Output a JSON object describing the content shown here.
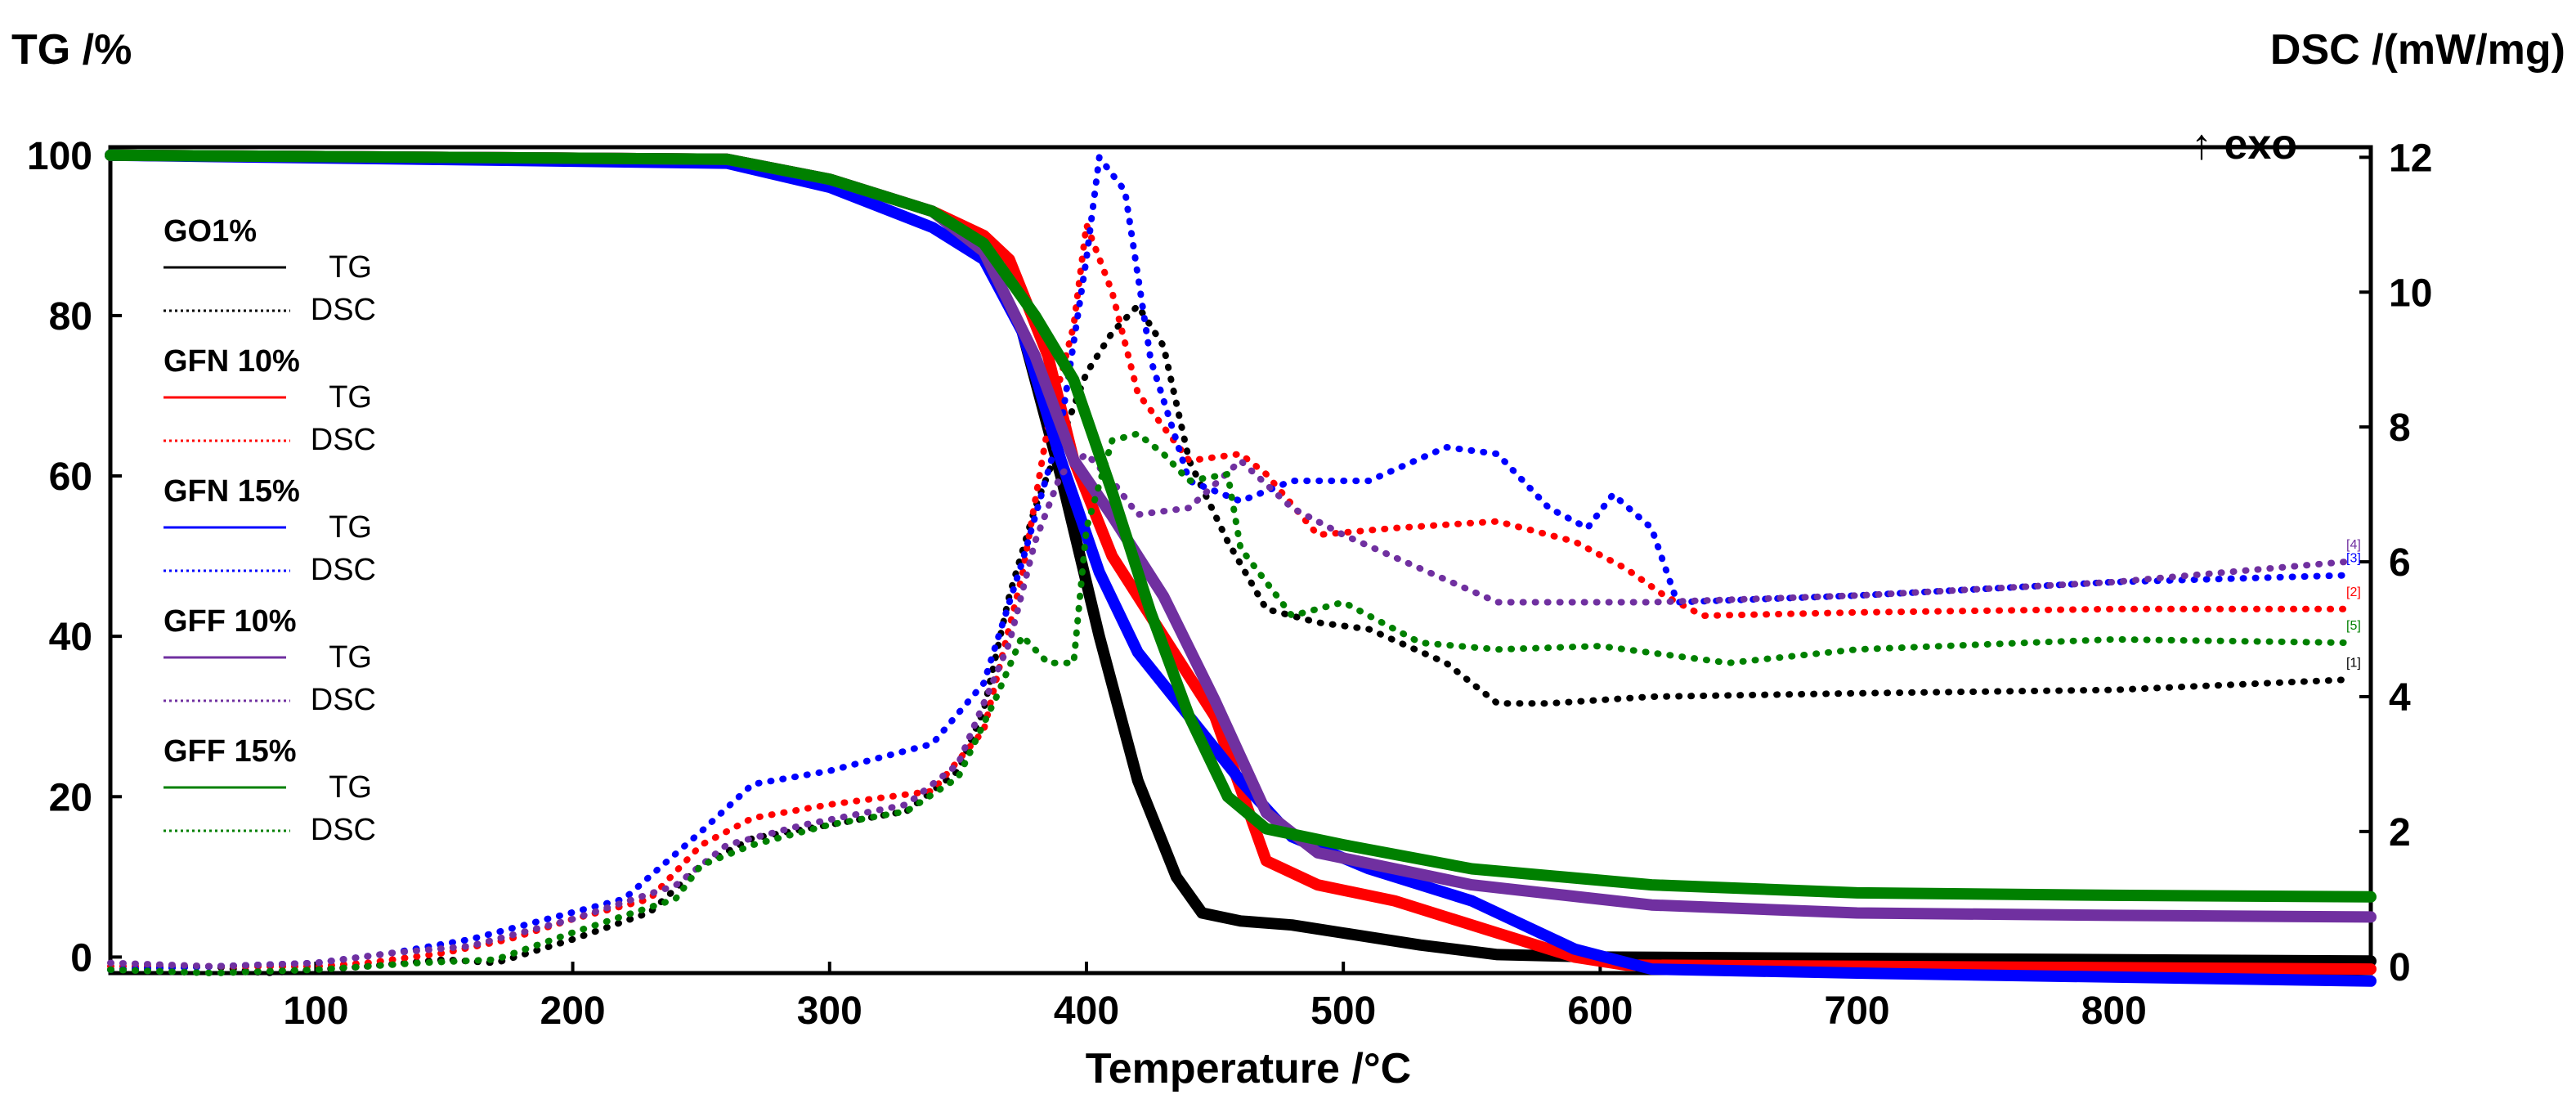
{
  "chart_data": {
    "type": "line",
    "title": "",
    "xlabel": "Temperature /°C",
    "y_left_label": "TG /%",
    "y_right_label": "DSC /(mW/mg)",
    "exo_label": "↑ exo",
    "xlim": [
      20,
      900
    ],
    "ylim_left": [
      -2,
      101
    ],
    "ylim_right": [
      -0.1,
      12.15
    ],
    "x_ticks": [
      100,
      200,
      300,
      400,
      500,
      600,
      700,
      800
    ],
    "y_left_ticks": [
      0,
      20,
      40,
      60,
      80,
      100
    ],
    "y_right_ticks": [
      0,
      2,
      4,
      6,
      8,
      10,
      12
    ],
    "legend_tg_label": "TG",
    "legend_dsc_label": "DSC",
    "series": [
      {
        "name": "GO1%",
        "color": "#000000",
        "end_marker": "[1]",
        "tg": [
          [
            20,
            100
          ],
          [
            260,
            99.5
          ],
          [
            300,
            97
          ],
          [
            340,
            93
          ],
          [
            360,
            88
          ],
          [
            375,
            78
          ],
          [
            390,
            60
          ],
          [
            405,
            40
          ],
          [
            420,
            22
          ],
          [
            435,
            10
          ],
          [
            445,
            5.5
          ],
          [
            460,
            4.5
          ],
          [
            480,
            4
          ],
          [
            500,
            3
          ],
          [
            530,
            1.5
          ],
          [
            560,
            0.3
          ],
          [
            600,
            0
          ],
          [
            900,
            -0.5
          ]
        ],
        "dsc": [
          [
            20,
            -0.05
          ],
          [
            60,
            0
          ],
          [
            80,
            -0.1
          ],
          [
            100,
            -0.05
          ],
          [
            120,
            0
          ],
          [
            150,
            0.1
          ],
          [
            170,
            0.05
          ],
          [
            200,
            0.4
          ],
          [
            230,
            0.8
          ],
          [
            250,
            1.5
          ],
          [
            270,
            1.9
          ],
          [
            300,
            2.1
          ],
          [
            330,
            2.3
          ],
          [
            350,
            2.9
          ],
          [
            360,
            3.8
          ],
          [
            370,
            5.5
          ],
          [
            380,
            6.8
          ],
          [
            390,
            7.8
          ],
          [
            400,
            8.8
          ],
          [
            410,
            9.4
          ],
          [
            420,
            9.8
          ],
          [
            430,
            9.2
          ],
          [
            440,
            7.5
          ],
          [
            455,
            6.3
          ],
          [
            470,
            5.3
          ],
          [
            490,
            5.1
          ],
          [
            510,
            5.0
          ],
          [
            540,
            4.5
          ],
          [
            560,
            3.9
          ],
          [
            580,
            3.9
          ],
          [
            620,
            4.0
          ],
          [
            700,
            4.05
          ],
          [
            800,
            4.1
          ],
          [
            890,
            4.25
          ]
        ]
      },
      {
        "name": "GFN 10%",
        "color": "#ff0000",
        "end_marker": "[2]",
        "tg": [
          [
            20,
            100
          ],
          [
            260,
            99.5
          ],
          [
            300,
            97
          ],
          [
            340,
            93
          ],
          [
            360,
            90
          ],
          [
            370,
            87
          ],
          [
            385,
            75
          ],
          [
            395,
            62
          ],
          [
            410,
            50
          ],
          [
            430,
            40
          ],
          [
            450,
            30
          ],
          [
            470,
            12
          ],
          [
            490,
            9
          ],
          [
            520,
            7
          ],
          [
            560,
            3
          ],
          [
            590,
            0
          ],
          [
            610,
            -1
          ],
          [
            900,
            -1.5
          ]
        ],
        "dsc": [
          [
            20,
            0
          ],
          [
            60,
            0
          ],
          [
            100,
            0
          ],
          [
            120,
            0.05
          ],
          [
            150,
            0.2
          ],
          [
            175,
            0.4
          ],
          [
            200,
            0.7
          ],
          [
            230,
            1.0
          ],
          [
            250,
            1.8
          ],
          [
            270,
            2.2
          ],
          [
            300,
            2.4
          ],
          [
            340,
            2.6
          ],
          [
            360,
            3.5
          ],
          [
            375,
            5.8
          ],
          [
            385,
            8.0
          ],
          [
            395,
            9.5
          ],
          [
            400,
            11.0
          ],
          [
            410,
            10.0
          ],
          [
            420,
            8.5
          ],
          [
            440,
            7.5
          ],
          [
            460,
            7.6
          ],
          [
            470,
            7.3
          ],
          [
            490,
            6.4
          ],
          [
            520,
            6.5
          ],
          [
            560,
            6.6
          ],
          [
            590,
            6.3
          ],
          [
            610,
            5.9
          ],
          [
            625,
            5.5
          ],
          [
            640,
            5.2
          ],
          [
            700,
            5.25
          ],
          [
            800,
            5.3
          ],
          [
            890,
            5.3
          ]
        ]
      },
      {
        "name": "GFN 15%",
        "color": "#0000ff",
        "end_marker": "[3]",
        "tg": [
          [
            20,
            100
          ],
          [
            260,
            99
          ],
          [
            300,
            96
          ],
          [
            340,
            91
          ],
          [
            360,
            87
          ],
          [
            375,
            78
          ],
          [
            390,
            62
          ],
          [
            405,
            48
          ],
          [
            420,
            38
          ],
          [
            440,
            30
          ],
          [
            460,
            22
          ],
          [
            480,
            15
          ],
          [
            510,
            11
          ],
          [
            550,
            7
          ],
          [
            590,
            1
          ],
          [
            620,
            -1.5
          ],
          [
            700,
            -2
          ],
          [
            900,
            -3
          ]
        ],
        "dsc": [
          [
            20,
            -0.05
          ],
          [
            60,
            0
          ],
          [
            100,
            0.05
          ],
          [
            130,
            0.2
          ],
          [
            160,
            0.4
          ],
          [
            190,
            0.7
          ],
          [
            220,
            1.0
          ],
          [
            250,
            2.0
          ],
          [
            270,
            2.7
          ],
          [
            300,
            2.9
          ],
          [
            340,
            3.3
          ],
          [
            360,
            4.2
          ],
          [
            375,
            6.0
          ],
          [
            390,
            8.0
          ],
          [
            400,
            10.5
          ],
          [
            405,
            12.0
          ],
          [
            415,
            11.5
          ],
          [
            425,
            9.0
          ],
          [
            440,
            7.2
          ],
          [
            460,
            6.9
          ],
          [
            480,
            7.2
          ],
          [
            510,
            7.2
          ],
          [
            540,
            7.7
          ],
          [
            560,
            7.6
          ],
          [
            580,
            6.8
          ],
          [
            595,
            6.5
          ],
          [
            605,
            7.0
          ],
          [
            620,
            6.5
          ],
          [
            630,
            5.4
          ],
          [
            700,
            5.5
          ],
          [
            800,
            5.7
          ],
          [
            890,
            5.8
          ]
        ]
      },
      {
        "name": "GFF 10%",
        "color": "#7030a0",
        "end_marker": "[4]",
        "tg": [
          [
            20,
            100
          ],
          [
            260,
            99.5
          ],
          [
            300,
            97
          ],
          [
            340,
            93
          ],
          [
            360,
            88
          ],
          [
            380,
            75
          ],
          [
            395,
            62
          ],
          [
            410,
            55
          ],
          [
            430,
            45
          ],
          [
            450,
            32
          ],
          [
            470,
            18
          ],
          [
            490,
            13
          ],
          [
            550,
            9
          ],
          [
            620,
            6.5
          ],
          [
            700,
            5.5
          ],
          [
            800,
            5.2
          ],
          [
            900,
            5
          ]
        ],
        "dsc": [
          [
            20,
            0.05
          ],
          [
            60,
            0
          ],
          [
            100,
            0.05
          ],
          [
            130,
            0.2
          ],
          [
            160,
            0.3
          ],
          [
            200,
            0.7
          ],
          [
            240,
            1.2
          ],
          [
            260,
            1.8
          ],
          [
            290,
            2.1
          ],
          [
            330,
            2.4
          ],
          [
            350,
            3.0
          ],
          [
            370,
            4.8
          ],
          [
            380,
            6.3
          ],
          [
            390,
            7.3
          ],
          [
            400,
            7.6
          ],
          [
            410,
            7.2
          ],
          [
            420,
            6.7
          ],
          [
            440,
            6.8
          ],
          [
            460,
            7.5
          ],
          [
            480,
            6.8
          ],
          [
            500,
            6.4
          ],
          [
            530,
            5.9
          ],
          [
            560,
            5.4
          ],
          [
            620,
            5.4
          ],
          [
            700,
            5.5
          ],
          [
            800,
            5.7
          ],
          [
            890,
            6.0
          ]
        ]
      },
      {
        "name": "GFF 15%",
        "color": "#008000",
        "end_marker": "[5]",
        "tg": [
          [
            20,
            100
          ],
          [
            260,
            99.5
          ],
          [
            300,
            97
          ],
          [
            340,
            93
          ],
          [
            360,
            89
          ],
          [
            380,
            80
          ],
          [
            395,
            72
          ],
          [
            410,
            58
          ],
          [
            425,
            43
          ],
          [
            440,
            30
          ],
          [
            455,
            20
          ],
          [
            470,
            16
          ],
          [
            500,
            14
          ],
          [
            550,
            11
          ],
          [
            620,
            9
          ],
          [
            700,
            8
          ],
          [
            800,
            7.7
          ],
          [
            900,
            7.5
          ]
        ],
        "dsc": [
          [
            20,
            -0.05
          ],
          [
            60,
            -0.1
          ],
          [
            100,
            -0.05
          ],
          [
            140,
            0.05
          ],
          [
            170,
            0.1
          ],
          [
            200,
            0.5
          ],
          [
            240,
            1.0
          ],
          [
            250,
            1.5
          ],
          [
            270,
            1.8
          ],
          [
            300,
            2.1
          ],
          [
            330,
            2.3
          ],
          [
            350,
            2.8
          ],
          [
            365,
            4.0
          ],
          [
            375,
            4.9
          ],
          [
            385,
            4.5
          ],
          [
            395,
            4.5
          ],
          [
            400,
            6.5
          ],
          [
            410,
            7.8
          ],
          [
            420,
            7.9
          ],
          [
            430,
            7.6
          ],
          [
            440,
            7.2
          ],
          [
            455,
            7.3
          ],
          [
            460,
            6.2
          ],
          [
            480,
            5.2
          ],
          [
            500,
            5.4
          ],
          [
            530,
            4.8
          ],
          [
            560,
            4.7
          ],
          [
            600,
            4.75
          ],
          [
            650,
            4.5
          ],
          [
            700,
            4.7
          ],
          [
            800,
            4.85
          ],
          [
            890,
            4.8
          ]
        ]
      }
    ]
  }
}
